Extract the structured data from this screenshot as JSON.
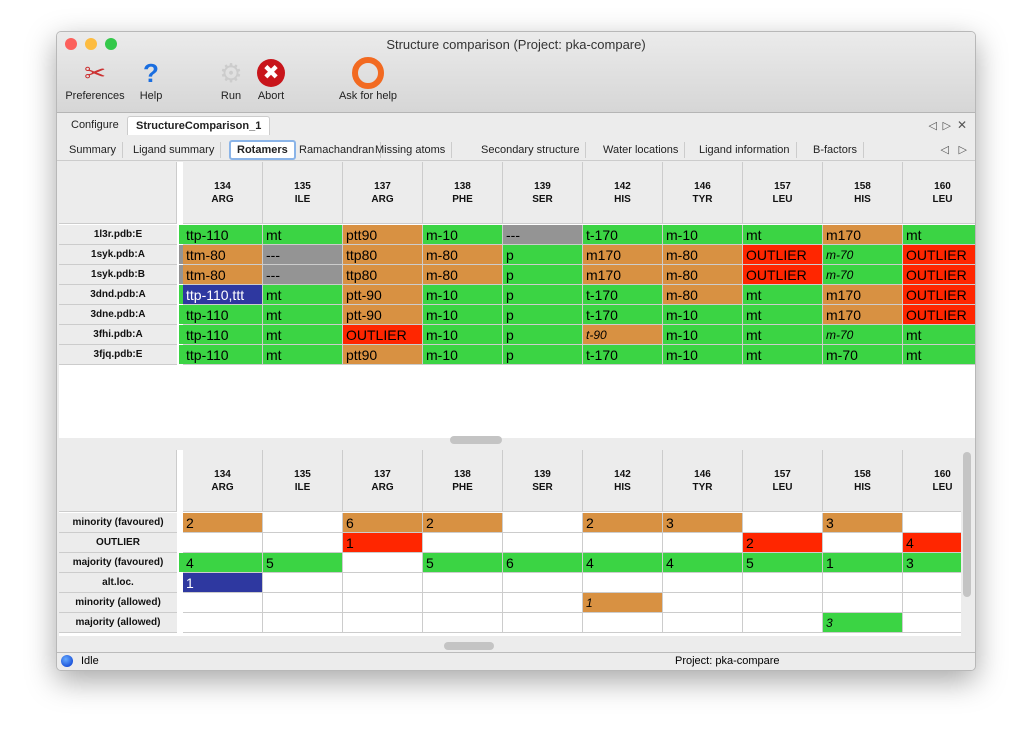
{
  "window": {
    "title": "Structure comparison (Project: pka-compare)"
  },
  "toolbar": [
    {
      "label": "Preferences",
      "icon": "tools-icon"
    },
    {
      "label": "Help",
      "icon": "help-icon"
    },
    {
      "label": "Run",
      "icon": "gear-icon"
    },
    {
      "label": "Abort",
      "icon": "abort-icon"
    },
    {
      "label": "Ask for help",
      "icon": "lifebuoy-icon"
    }
  ],
  "tabs": [
    "Configure",
    "StructureComparison_1"
  ],
  "active_tab": 1,
  "subtabs": [
    "Summary",
    "Ligand summary",
    "Rotamers",
    "Ramachandran",
    "Missing atoms",
    "Secondary structure",
    "Water locations",
    "Ligand information",
    "B-factors"
  ],
  "active_subtab": 2,
  "colors": {
    "green": "#3bd444",
    "orange": "#d89142",
    "red": "#ff2600",
    "gray": "#949494",
    "blue": "#2e38a0"
  },
  "columns": [
    [
      "134",
      "ARG"
    ],
    [
      "135",
      "ILE"
    ],
    [
      "137",
      "ARG"
    ],
    [
      "138",
      "PHE"
    ],
    [
      "139",
      "SER"
    ],
    [
      "142",
      "HIS"
    ],
    [
      "146",
      "TYR"
    ],
    [
      "157",
      "LEU"
    ],
    [
      "158",
      "HIS"
    ],
    [
      "160",
      "LEU"
    ]
  ],
  "upper": {
    "rows": [
      {
        "label": "1l3r.pdb:E",
        "cells": [
          [
            "ttp-110",
            "green"
          ],
          [
            "mt",
            "green"
          ],
          [
            "ptt90",
            "orange"
          ],
          [
            "m-10",
            "green"
          ],
          [
            "---",
            "gray"
          ],
          [
            "t-170",
            "green"
          ],
          [
            "m-10",
            "green"
          ],
          [
            "mt",
            "green"
          ],
          [
            "m170",
            "orange"
          ],
          [
            "mt",
            "green"
          ]
        ]
      },
      {
        "label": "1syk.pdb:A",
        "cells": [
          [
            "ttm-80",
            "orange"
          ],
          [
            "---",
            "gray"
          ],
          [
            "ttp80",
            "orange"
          ],
          [
            "m-80",
            "orange"
          ],
          [
            "p",
            "green"
          ],
          [
            "m170",
            "orange"
          ],
          [
            "m-80",
            "orange"
          ],
          [
            "OUTLIER",
            "red"
          ],
          [
            "m-70",
            "green",
            "i"
          ],
          [
            "OUTLIER",
            "red"
          ]
        ]
      },
      {
        "label": "1syk.pdb:B",
        "cells": [
          [
            "ttm-80",
            "orange"
          ],
          [
            "---",
            "gray"
          ],
          [
            "ttp80",
            "orange"
          ],
          [
            "m-80",
            "orange"
          ],
          [
            "p",
            "green"
          ],
          [
            "m170",
            "orange"
          ],
          [
            "m-80",
            "orange"
          ],
          [
            "OUTLIER",
            "red"
          ],
          [
            "m-70",
            "green",
            "i"
          ],
          [
            "OUTLIER",
            "red"
          ]
        ]
      },
      {
        "label": "3dnd.pdb:A",
        "cells": [
          [
            "ttp-110,ttt",
            "blue"
          ],
          [
            "mt",
            "green"
          ],
          [
            "ptt-90",
            "orange"
          ],
          [
            "m-10",
            "green"
          ],
          [
            "p",
            "green"
          ],
          [
            "t-170",
            "green"
          ],
          [
            "m-80",
            "orange"
          ],
          [
            "mt",
            "green"
          ],
          [
            "m170",
            "orange"
          ],
          [
            "OUTLIER",
            "red"
          ]
        ]
      },
      {
        "label": "3dne.pdb:A",
        "cells": [
          [
            "ttp-110",
            "green"
          ],
          [
            "mt",
            "green"
          ],
          [
            "ptt-90",
            "orange"
          ],
          [
            "m-10",
            "green"
          ],
          [
            "p",
            "green"
          ],
          [
            "t-170",
            "green"
          ],
          [
            "m-10",
            "green"
          ],
          [
            "mt",
            "green"
          ],
          [
            "m170",
            "orange"
          ],
          [
            "OUTLIER",
            "red"
          ]
        ]
      },
      {
        "label": "3fhi.pdb:A",
        "cells": [
          [
            "ttp-110",
            "green"
          ],
          [
            "mt",
            "green"
          ],
          [
            "OUTLIER",
            "red"
          ],
          [
            "m-10",
            "green"
          ],
          [
            "p",
            "green"
          ],
          [
            "t-90",
            "orange",
            "i"
          ],
          [
            "m-10",
            "green"
          ],
          [
            "mt",
            "green"
          ],
          [
            "m-70",
            "green",
            "i"
          ],
          [
            "mt",
            "green"
          ]
        ]
      },
      {
        "label": "3fjq.pdb:E",
        "cells": [
          [
            "ttp-110",
            "green"
          ],
          [
            "mt",
            "green"
          ],
          [
            "ptt90",
            "orange"
          ],
          [
            "m-10",
            "green"
          ],
          [
            "p",
            "green"
          ],
          [
            "t-170",
            "green"
          ],
          [
            "m-10",
            "green"
          ],
          [
            "mt",
            "green"
          ],
          [
            "m-70",
            "green"
          ],
          [
            "mt",
            "green"
          ]
        ]
      }
    ]
  },
  "lower": {
    "rows": [
      {
        "label": "minority (favoured)",
        "cells": [
          [
            "2",
            "orange"
          ],
          [
            "",
            ""
          ],
          [
            "6",
            "orange"
          ],
          [
            "2",
            "orange"
          ],
          [
            "",
            ""
          ],
          [
            "2",
            "orange"
          ],
          [
            "3",
            "orange"
          ],
          [
            "",
            ""
          ],
          [
            "3",
            "orange"
          ],
          [
            "",
            ""
          ]
        ]
      },
      {
        "label": "OUTLIER",
        "cells": [
          [
            "",
            ""
          ],
          [
            "",
            ""
          ],
          [
            "1",
            "red"
          ],
          [
            "",
            ""
          ],
          [
            "",
            ""
          ],
          [
            "",
            ""
          ],
          [
            "",
            ""
          ],
          [
            "2",
            "red"
          ],
          [
            "",
            ""
          ],
          [
            "4",
            "red"
          ]
        ]
      },
      {
        "label": "majority (favoured)",
        "cells": [
          [
            "4",
            "green"
          ],
          [
            "5",
            "green"
          ],
          [
            "",
            ""
          ],
          [
            "5",
            "green"
          ],
          [
            "6",
            "green"
          ],
          [
            "4",
            "green"
          ],
          [
            "4",
            "green"
          ],
          [
            "5",
            "green"
          ],
          [
            "1",
            "green"
          ],
          [
            "3",
            "green"
          ]
        ]
      },
      {
        "label": "alt.loc.",
        "cells": [
          [
            "1",
            "blue"
          ],
          [
            "",
            ""
          ],
          [
            "",
            ""
          ],
          [
            "",
            ""
          ],
          [
            "",
            ""
          ],
          [
            "",
            ""
          ],
          [
            "",
            ""
          ],
          [
            "",
            ""
          ],
          [
            "",
            ""
          ],
          [
            "",
            ""
          ]
        ]
      },
      {
        "label": "minority (allowed)",
        "cells": [
          [
            "",
            ""
          ],
          [
            "",
            ""
          ],
          [
            "",
            ""
          ],
          [
            "",
            ""
          ],
          [
            "",
            ""
          ],
          [
            "1",
            "orange",
            "i"
          ],
          [
            "",
            ""
          ],
          [
            "",
            ""
          ],
          [
            "",
            ""
          ],
          [
            "",
            ""
          ]
        ]
      },
      {
        "label": "majority (allowed)",
        "cells": [
          [
            "",
            ""
          ],
          [
            "",
            ""
          ],
          [
            "",
            ""
          ],
          [
            "",
            ""
          ],
          [
            "",
            ""
          ],
          [
            "",
            ""
          ],
          [
            "",
            ""
          ],
          [
            "",
            ""
          ],
          [
            "3",
            "green",
            "i"
          ],
          [
            "",
            ""
          ]
        ]
      }
    ]
  },
  "status": {
    "state": "Idle",
    "project": "Project: pka-compare"
  }
}
